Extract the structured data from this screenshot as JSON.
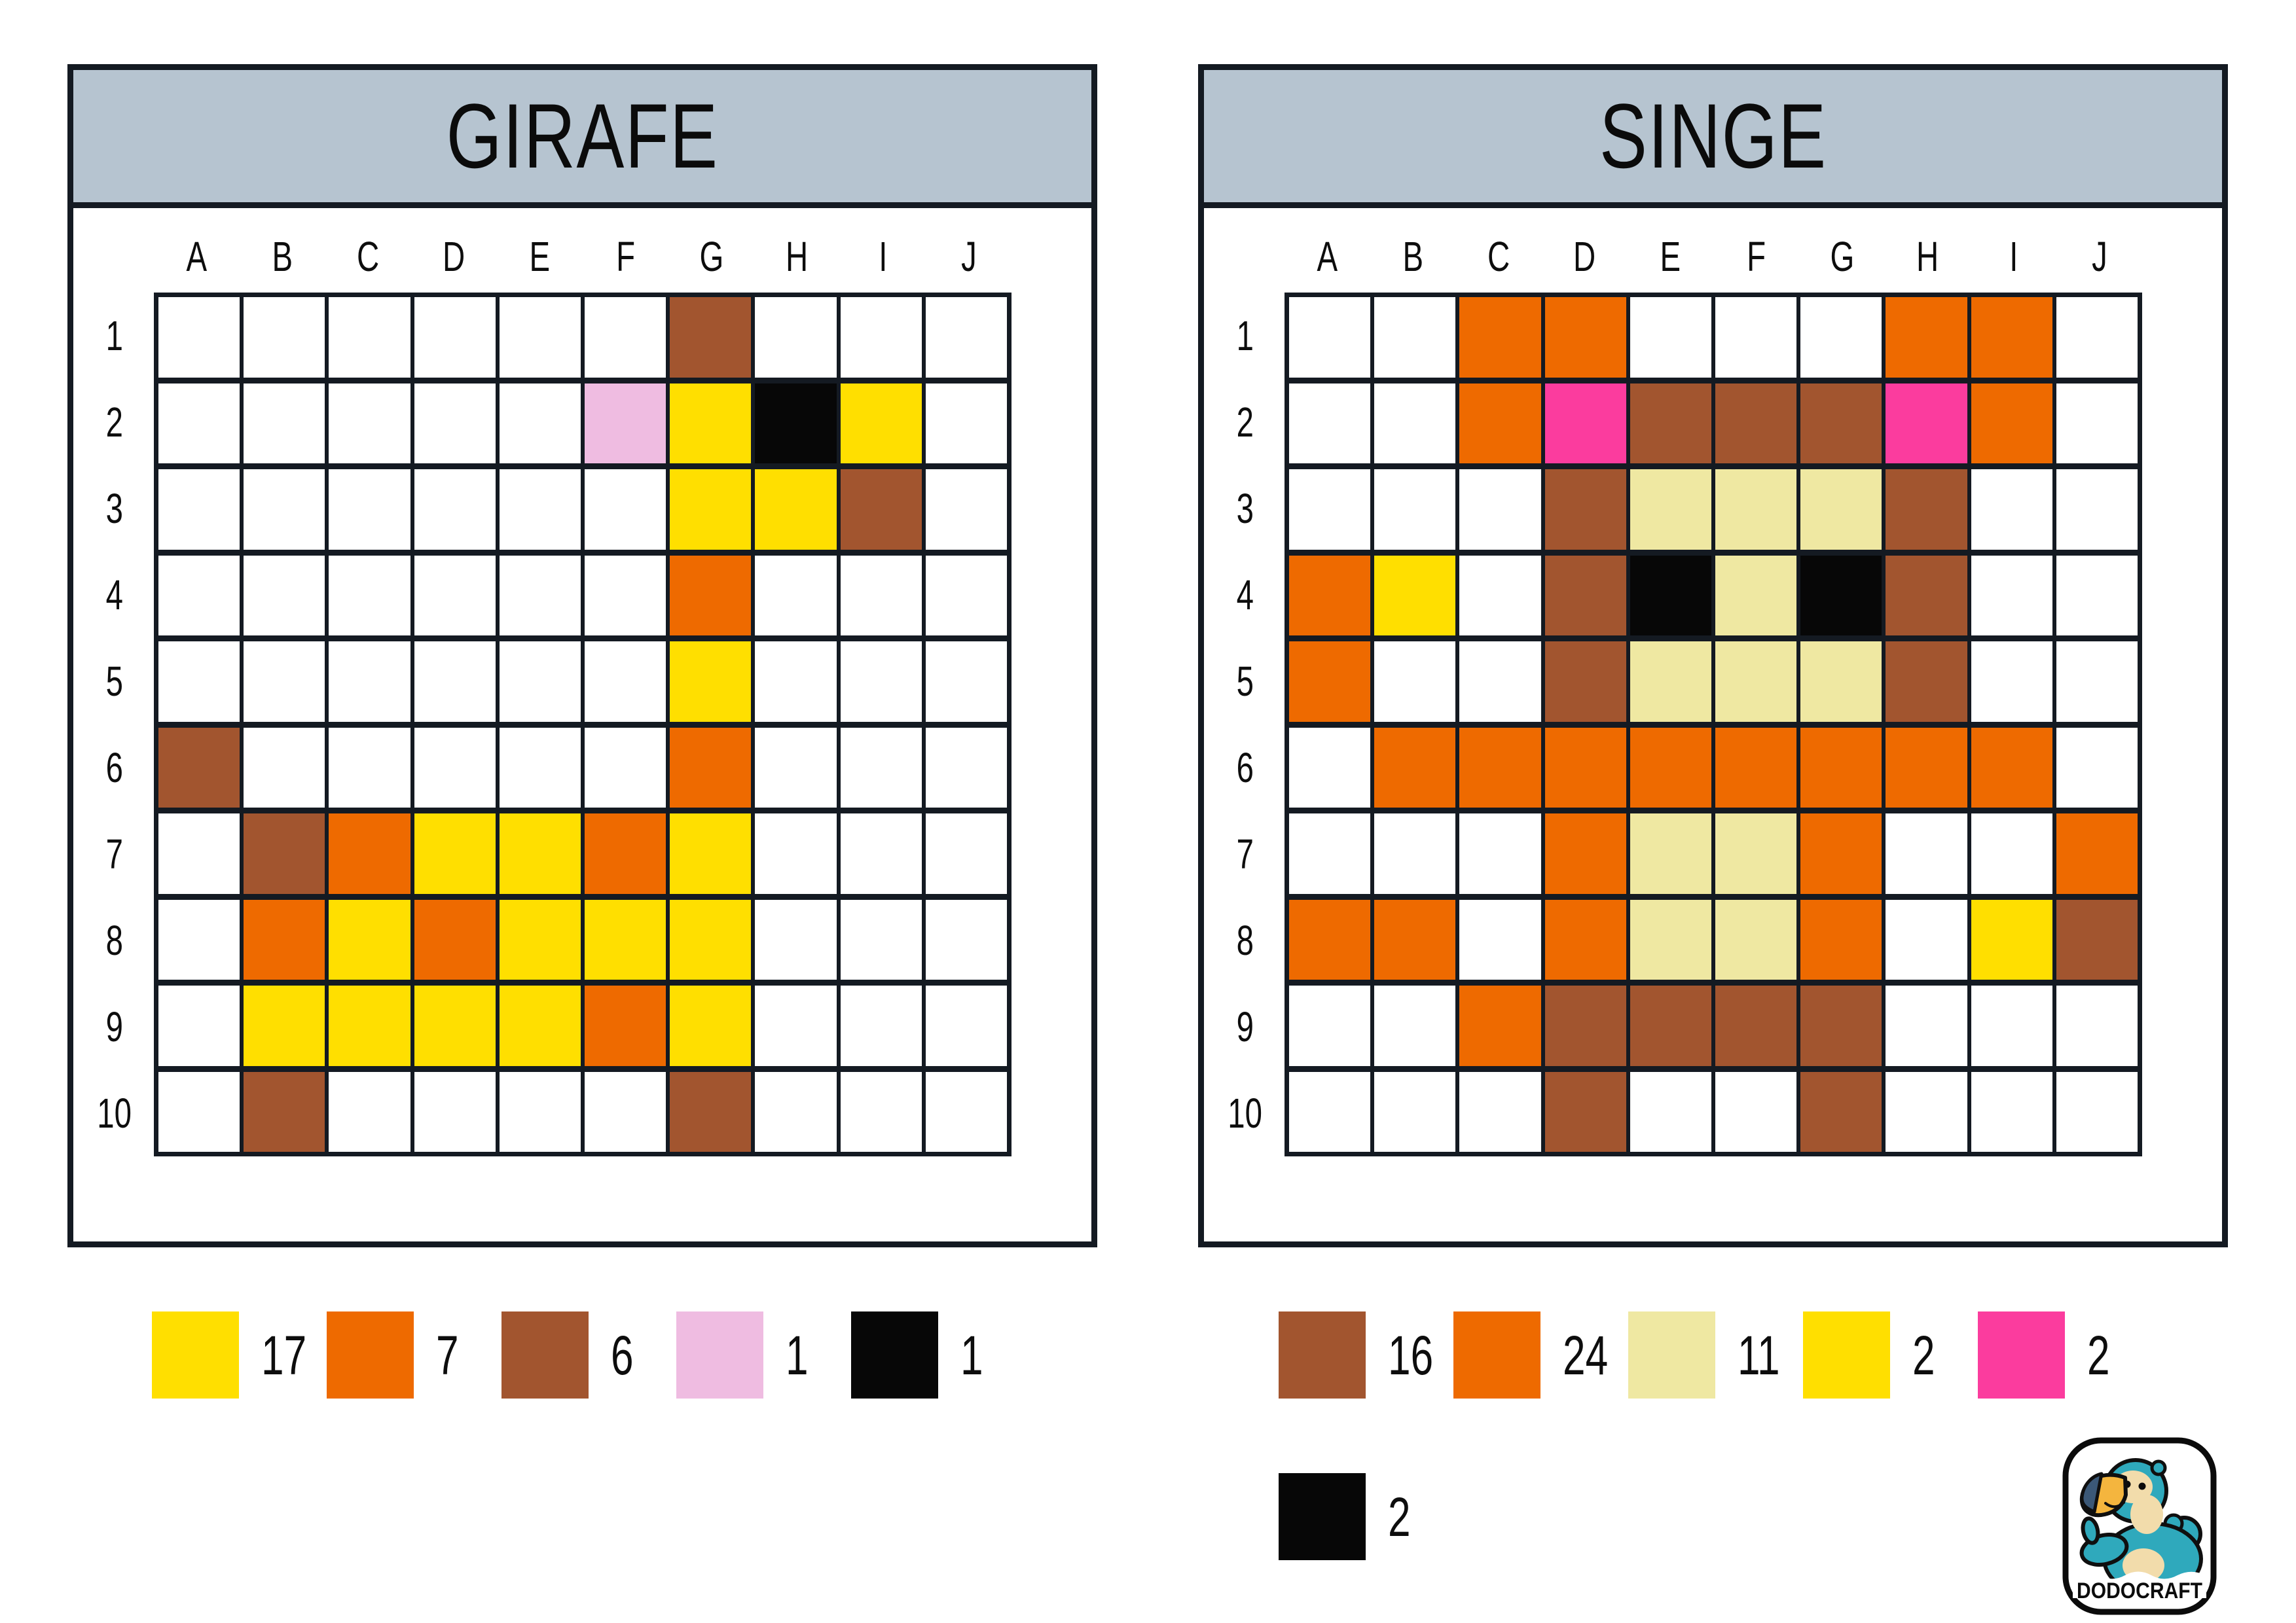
{
  "palette": {
    "yellow": "#ffdf00",
    "orange": "#ee6a00",
    "brown": "#a2552f",
    "pink": "#efbce1",
    "black": "#070707",
    "cream": "#efe8a2",
    "magenta": "#fb3c9e"
  },
  "ui": {
    "titlebar_bg": "#b6c4d0",
    "grid_line": "#141a22"
  },
  "panels": [
    {
      "id": "girafe",
      "title": "GIRAFE",
      "columns": [
        "A",
        "B",
        "C",
        "D",
        "E",
        "F",
        "G",
        "H",
        "I",
        "J"
      ],
      "rows": [
        "1",
        "2",
        "3",
        "4",
        "5",
        "6",
        "7",
        "8",
        "9",
        "10"
      ],
      "cells": {
        "G1": "brown",
        "F2": "pink",
        "G2": "yellow",
        "H2": "black",
        "I2": "yellow",
        "G3": "yellow",
        "H3": "yellow",
        "I3": "brown",
        "G4": "orange",
        "G5": "yellow",
        "A6": "brown",
        "G6": "orange",
        "B7": "brown",
        "C7": "orange",
        "D7": "yellow",
        "E7": "yellow",
        "F7": "orange",
        "G7": "yellow",
        "B8": "orange",
        "C8": "yellow",
        "D8": "orange",
        "E8": "yellow",
        "F8": "yellow",
        "G8": "yellow",
        "B9": "yellow",
        "C9": "yellow",
        "D9": "yellow",
        "E9": "yellow",
        "F9": "orange",
        "G9": "yellow",
        "B10": "brown",
        "G10": "brown"
      }
    },
    {
      "id": "singe",
      "title": "SINGE",
      "columns": [
        "A",
        "B",
        "C",
        "D",
        "E",
        "F",
        "G",
        "H",
        "I",
        "J"
      ],
      "rows": [
        "1",
        "2",
        "3",
        "4",
        "5",
        "6",
        "7",
        "8",
        "9",
        "10"
      ],
      "cells": {
        "C1": "orange",
        "D1": "orange",
        "H1": "orange",
        "I1": "orange",
        "C2": "orange",
        "D2": "magenta",
        "E2": "brown",
        "F2": "brown",
        "G2": "brown",
        "H2": "magenta",
        "I2": "orange",
        "D3": "brown",
        "E3": "cream",
        "F3": "cream",
        "G3": "cream",
        "H3": "brown",
        "A4": "orange",
        "B4": "yellow",
        "D4": "brown",
        "E4": "black",
        "F4": "cream",
        "G4": "black",
        "H4": "brown",
        "A5": "orange",
        "D5": "brown",
        "E5": "cream",
        "F5": "cream",
        "G5": "cream",
        "H5": "brown",
        "B6": "orange",
        "C6": "orange",
        "D6": "orange",
        "E6": "orange",
        "F6": "orange",
        "G6": "orange",
        "H6": "orange",
        "I6": "orange",
        "D7": "orange",
        "E7": "cream",
        "F7": "cream",
        "G7": "orange",
        "J7": "orange",
        "A8": "orange",
        "B8": "orange",
        "D8": "orange",
        "E8": "cream",
        "F8": "cream",
        "G8": "orange",
        "I8": "yellow",
        "J8": "brown",
        "C9": "orange",
        "D9": "brown",
        "E9": "brown",
        "F9": "brown",
        "G9": "brown",
        "D10": "brown",
        "G10": "brown"
      }
    }
  ],
  "legends": [
    {
      "panel": "girafe",
      "items": [
        {
          "color": "yellow",
          "count": "17"
        },
        {
          "color": "orange",
          "count": "7"
        },
        {
          "color": "brown",
          "count": "6"
        },
        {
          "color": "pink",
          "count": "1"
        },
        {
          "color": "black",
          "count": "1"
        }
      ]
    },
    {
      "panel": "singe",
      "items": [
        {
          "color": "brown",
          "count": "16"
        },
        {
          "color": "orange",
          "count": "24"
        },
        {
          "color": "cream",
          "count": "11"
        },
        {
          "color": "yellow",
          "count": "2"
        },
        {
          "color": "magenta",
          "count": "2"
        },
        {
          "color": "black",
          "count": "2"
        }
      ]
    }
  ],
  "logo": {
    "brand": "DODOCRAFT"
  }
}
